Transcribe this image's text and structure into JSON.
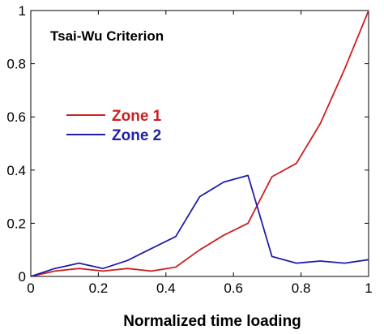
{
  "chart_data": {
    "type": "line",
    "title": "Tsai-Wu Criterion",
    "xlabel": "Normalized time loading",
    "ylabel": "",
    "xlim": [
      0,
      1
    ],
    "ylim": [
      0,
      1
    ],
    "xticks": [
      0,
      0.2,
      0.4,
      0.6,
      0.8,
      1
    ],
    "yticks": [
      0,
      0.2,
      0.4,
      0.6,
      0.8,
      1
    ],
    "xtick_labels": [
      "0",
      "0.2",
      "0.4",
      "0.6",
      "0.8",
      "1"
    ],
    "ytick_labels": [
      "0",
      "0.2",
      "0.4",
      "0.6",
      "0.8",
      "1"
    ],
    "grid": false,
    "legend_position": "upper-left",
    "series": [
      {
        "name": "Zone 1",
        "color": "#cc1f1f",
        "x": [
          0,
          0.071,
          0.143,
          0.214,
          0.286,
          0.357,
          0.429,
          0.5,
          0.571,
          0.643,
          0.714,
          0.786,
          0.857,
          0.929,
          1.0
        ],
        "y": [
          0,
          0.02,
          0.03,
          0.02,
          0.03,
          0.02,
          0.035,
          0.1,
          0.155,
          0.2,
          0.375,
          0.425,
          0.575,
          0.78,
          1.0
        ]
      },
      {
        "name": "Zone 2",
        "color": "#1f1fa8",
        "x": [
          0,
          0.071,
          0.143,
          0.214,
          0.286,
          0.357,
          0.429,
          0.5,
          0.571,
          0.643,
          0.714,
          0.786,
          0.857,
          0.929,
          1.0
        ],
        "y": [
          0,
          0.03,
          0.05,
          0.03,
          0.06,
          0.105,
          0.15,
          0.3,
          0.355,
          0.38,
          0.075,
          0.05,
          0.058,
          0.05,
          0.063
        ]
      }
    ]
  }
}
